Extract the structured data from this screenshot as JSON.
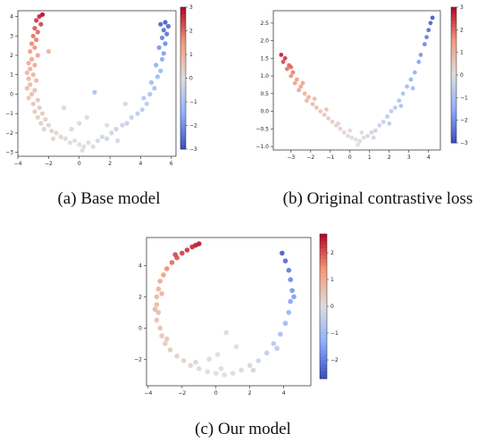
{
  "chart_data": [
    {
      "type": "scatter",
      "caption": "(a) Base model",
      "xlim": [
        -4,
        6.3
      ],
      "ylim": [
        -3.2,
        4.3
      ],
      "xticks": [
        -4,
        -2,
        0,
        2,
        4,
        6
      ],
      "yticks": [
        -3,
        -2,
        -1,
        0,
        1,
        2,
        3,
        4
      ],
      "colorbar": {
        "min": -3,
        "max": 3,
        "ticks": [
          3,
          2,
          1,
          0,
          -1,
          -2,
          -3
        ],
        "tick_labels": [
          "3",
          "2",
          "1",
          "0",
          "−1",
          "−2",
          "−3"
        ]
      },
      "points": [
        {
          "x": -2.4,
          "y": 4.1,
          "c": 3.0
        },
        {
          "x": -2.6,
          "y": 4.0,
          "c": 2.7
        },
        {
          "x": -2.8,
          "y": 3.8,
          "c": 2.5
        },
        {
          "x": -2.5,
          "y": 3.6,
          "c": 2.4
        },
        {
          "x": -2.9,
          "y": 3.4,
          "c": 2.2
        },
        {
          "x": -2.7,
          "y": 3.2,
          "c": 2.0
        },
        {
          "x": -3.0,
          "y": 3.0,
          "c": 1.9
        },
        {
          "x": -2.8,
          "y": 2.8,
          "c": 1.8
        },
        {
          "x": -3.1,
          "y": 2.6,
          "c": 1.7
        },
        {
          "x": -2.9,
          "y": 2.4,
          "c": 1.6
        },
        {
          "x": -3.2,
          "y": 2.2,
          "c": 1.5
        },
        {
          "x": -2.7,
          "y": 2.0,
          "c": 1.4
        },
        {
          "x": -3.1,
          "y": 1.8,
          "c": 1.3
        },
        {
          "x": -3.3,
          "y": 1.6,
          "c": 1.2
        },
        {
          "x": -2.9,
          "y": 1.5,
          "c": 1.2
        },
        {
          "x": -3.2,
          "y": 1.3,
          "c": 1.1
        },
        {
          "x": -3.4,
          "y": 1.1,
          "c": 1.0
        },
        {
          "x": -3.0,
          "y": 1.0,
          "c": 1.0
        },
        {
          "x": -3.3,
          "y": 0.8,
          "c": 0.9
        },
        {
          "x": -2.8,
          "y": 0.7,
          "c": 0.9
        },
        {
          "x": -3.2,
          "y": 0.5,
          "c": 0.8
        },
        {
          "x": -3.4,
          "y": 0.3,
          "c": 0.8
        },
        {
          "x": -2.9,
          "y": 0.2,
          "c": 0.7
        },
        {
          "x": -3.1,
          "y": 0.0,
          "c": 0.7
        },
        {
          "x": -3.3,
          "y": -0.2,
          "c": 0.6
        },
        {
          "x": -2.7,
          "y": -0.3,
          "c": 0.6
        },
        {
          "x": -3.0,
          "y": -0.5,
          "c": 0.6
        },
        {
          "x": -2.6,
          "y": -0.7,
          "c": 0.5
        },
        {
          "x": -2.9,
          "y": -0.9,
          "c": 0.5
        },
        {
          "x": -2.4,
          "y": -1.0,
          "c": 0.5
        },
        {
          "x": -2.7,
          "y": -1.2,
          "c": 0.4
        },
        {
          "x": -2.2,
          "y": -1.3,
          "c": 0.4
        },
        {
          "x": -2.5,
          "y": -1.5,
          "c": 0.4
        },
        {
          "x": -2.0,
          "y": -1.6,
          "c": 0.3
        },
        {
          "x": -2.3,
          "y": -1.8,
          "c": 0.3
        },
        {
          "x": -1.8,
          "y": -1.9,
          "c": 0.3
        },
        {
          "x": -1.5,
          "y": -2.0,
          "c": 0.2
        },
        {
          "x": -1.2,
          "y": -2.2,
          "c": 0.2
        },
        {
          "x": -1.7,
          "y": -2.3,
          "c": 0.2
        },
        {
          "x": -0.9,
          "y": -2.3,
          "c": 0.1
        },
        {
          "x": -0.6,
          "y": -2.5,
          "c": 0.1
        },
        {
          "x": -0.3,
          "y": -2.4,
          "c": 0.0
        },
        {
          "x": 0.0,
          "y": -2.6,
          "c": 0.0
        },
        {
          "x": 0.3,
          "y": -2.7,
          "c": 0.0
        },
        {
          "x": 0.6,
          "y": -2.5,
          "c": -0.1
        },
        {
          "x": 0.2,
          "y": -2.9,
          "c": 0.0
        },
        {
          "x": 0.9,
          "y": -2.7,
          "c": -0.1
        },
        {
          "x": 1.2,
          "y": -2.4,
          "c": -0.2
        },
        {
          "x": 1.5,
          "y": -2.2,
          "c": -0.2
        },
        {
          "x": 1.8,
          "y": -2.3,
          "c": -0.3
        },
        {
          "x": 2.1,
          "y": -2.0,
          "c": -0.3
        },
        {
          "x": 2.4,
          "y": -1.8,
          "c": -0.4
        },
        {
          "x": 2.8,
          "y": -1.6,
          "c": -0.4
        },
        {
          "x": 3.1,
          "y": -1.5,
          "c": -0.5
        },
        {
          "x": 3.4,
          "y": -1.2,
          "c": -0.5
        },
        {
          "x": 3.8,
          "y": -1.0,
          "c": -0.6
        },
        {
          "x": 4.1,
          "y": -0.8,
          "c": -0.7
        },
        {
          "x": 4.4,
          "y": -0.5,
          "c": -0.7
        },
        {
          "x": 4.2,
          "y": -0.2,
          "c": -0.8
        },
        {
          "x": 4.6,
          "y": 0.0,
          "c": -0.9
        },
        {
          "x": 4.9,
          "y": 0.3,
          "c": -1.0
        },
        {
          "x": 4.7,
          "y": 0.6,
          "c": -1.1
        },
        {
          "x": 5.1,
          "y": 0.9,
          "c": -1.2
        },
        {
          "x": 5.3,
          "y": 1.2,
          "c": -1.3
        },
        {
          "x": 5.0,
          "y": 1.5,
          "c": -1.5
        },
        {
          "x": 5.4,
          "y": 1.8,
          "c": -1.6
        },
        {
          "x": 5.5,
          "y": 2.1,
          "c": -1.8
        },
        {
          "x": 5.2,
          "y": 2.4,
          "c": -1.9
        },
        {
          "x": 5.6,
          "y": 2.6,
          "c": -2.1
        },
        {
          "x": 5.4,
          "y": 2.9,
          "c": -2.2
        },
        {
          "x": 5.7,
          "y": 3.1,
          "c": -2.4
        },
        {
          "x": 5.5,
          "y": 3.3,
          "c": -2.5
        },
        {
          "x": 5.8,
          "y": 3.5,
          "c": -2.6
        },
        {
          "x": 5.6,
          "y": 3.7,
          "c": -2.8
        },
        {
          "x": 5.3,
          "y": 3.6,
          "c": -2.7
        },
        {
          "x": -1.0,
          "y": -0.7,
          "c": 0.3
        },
        {
          "x": 0.5,
          "y": -1.2,
          "c": 0.1
        },
        {
          "x": 1.0,
          "y": 0.1,
          "c": -1.0
        },
        {
          "x": -2.0,
          "y": 2.2,
          "c": 1.0
        },
        {
          "x": 1.8,
          "y": -1.6,
          "c": 0.0
        },
        {
          "x": 3.0,
          "y": -0.5,
          "c": -0.3
        },
        {
          "x": -0.5,
          "y": -1.8,
          "c": 0.2
        },
        {
          "x": 2.5,
          "y": -2.4,
          "c": -0.2
        },
        {
          "x": 0.0,
          "y": -1.5,
          "c": 0.2
        }
      ]
    },
    {
      "type": "scatter",
      "caption": "(b) Original contrastive loss",
      "xlim": [
        -3.9,
        4.6
      ],
      "ylim": [
        -1.1,
        2.85
      ],
      "xticks": [
        -3,
        -2,
        -1,
        0,
        1,
        2,
        3,
        4
      ],
      "yticks": [
        -1.0,
        -0.5,
        0.0,
        0.5,
        1.0,
        1.5,
        2.0,
        2.5
      ],
      "colorbar": {
        "min": -3,
        "max": 3,
        "ticks": [
          3,
          2,
          1,
          0,
          -1,
          -2,
          -3
        ],
        "tick_labels": [
          "3",
          "2",
          "1",
          "0",
          "−1",
          "−2",
          "−3"
        ]
      },
      "points": [
        {
          "x": -3.5,
          "y": 1.6,
          "c": 2.8
        },
        {
          "x": -3.3,
          "y": 1.5,
          "c": 2.5
        },
        {
          "x": -3.4,
          "y": 1.4,
          "c": 2.3
        },
        {
          "x": -3.1,
          "y": 1.3,
          "c": 2.1
        },
        {
          "x": -3.2,
          "y": 1.2,
          "c": 1.9
        },
        {
          "x": -2.9,
          "y": 1.1,
          "c": 1.8
        },
        {
          "x": -3.0,
          "y": 1.0,
          "c": 1.6
        },
        {
          "x": -2.7,
          "y": 0.9,
          "c": 1.5
        },
        {
          "x": -2.8,
          "y": 0.8,
          "c": 1.4
        },
        {
          "x": -2.5,
          "y": 0.7,
          "c": 1.3
        },
        {
          "x": -2.6,
          "y": 0.6,
          "c": 1.2
        },
        {
          "x": -2.3,
          "y": 0.5,
          "c": 1.1
        },
        {
          "x": -2.1,
          "y": 0.4,
          "c": 1.0
        },
        {
          "x": -2.2,
          "y": 0.3,
          "c": 0.9
        },
        {
          "x": -1.9,
          "y": 0.2,
          "c": 0.8
        },
        {
          "x": -1.7,
          "y": 0.1,
          "c": 0.7
        },
        {
          "x": -1.5,
          "y": 0.0,
          "c": 0.6
        },
        {
          "x": -1.3,
          "y": -0.1,
          "c": 0.5
        },
        {
          "x": -1.1,
          "y": -0.2,
          "c": 0.5
        },
        {
          "x": -0.9,
          "y": -0.3,
          "c": 0.4
        },
        {
          "x": -0.7,
          "y": -0.4,
          "c": 0.3
        },
        {
          "x": -0.5,
          "y": -0.5,
          "c": 0.3
        },
        {
          "x": -0.3,
          "y": -0.6,
          "c": 0.2
        },
        {
          "x": -0.1,
          "y": -0.7,
          "c": 0.1
        },
        {
          "x": 0.1,
          "y": -0.75,
          "c": 0.0
        },
        {
          "x": 0.3,
          "y": -0.8,
          "c": 0.0
        },
        {
          "x": 0.5,
          "y": -0.85,
          "c": -0.1
        },
        {
          "x": 0.7,
          "y": -0.75,
          "c": -0.1
        },
        {
          "x": 0.9,
          "y": -0.7,
          "c": -0.2
        },
        {
          "x": 1.1,
          "y": -0.6,
          "c": -0.3
        },
        {
          "x": 1.3,
          "y": -0.55,
          "c": -0.3
        },
        {
          "x": 1.5,
          "y": -0.4,
          "c": -0.4
        },
        {
          "x": 1.7,
          "y": -0.3,
          "c": -0.5
        },
        {
          "x": 1.9,
          "y": -0.15,
          "c": -0.6
        },
        {
          "x": 2.1,
          "y": 0.0,
          "c": -0.7
        },
        {
          "x": 2.3,
          "y": 0.1,
          "c": -0.8
        },
        {
          "x": 2.5,
          "y": 0.3,
          "c": -0.9
        },
        {
          "x": 2.7,
          "y": 0.5,
          "c": -1.0
        },
        {
          "x": 2.9,
          "y": 0.7,
          "c": -1.2
        },
        {
          "x": 3.1,
          "y": 0.9,
          "c": -1.4
        },
        {
          "x": 3.3,
          "y": 1.1,
          "c": -1.5
        },
        {
          "x": 3.5,
          "y": 1.4,
          "c": -1.7
        },
        {
          "x": 3.6,
          "y": 1.6,
          "c": -1.9
        },
        {
          "x": 3.8,
          "y": 1.9,
          "c": -2.1
        },
        {
          "x": 3.9,
          "y": 2.1,
          "c": -2.3
        },
        {
          "x": 4.0,
          "y": 2.3,
          "c": -2.5
        },
        {
          "x": 4.1,
          "y": 2.5,
          "c": -2.7
        },
        {
          "x": 4.2,
          "y": 2.65,
          "c": -2.9
        },
        {
          "x": -3.0,
          "y": 1.25,
          "c": 2.0
        },
        {
          "x": -2.4,
          "y": 0.8,
          "c": 1.3
        },
        {
          "x": -1.8,
          "y": 0.35,
          "c": 0.8
        },
        {
          "x": -1.2,
          "y": 0.05,
          "c": 0.6
        },
        {
          "x": -0.6,
          "y": -0.35,
          "c": 0.3
        },
        {
          "x": 0.0,
          "y": -0.55,
          "c": 0.1
        },
        {
          "x": 0.6,
          "y": -0.6,
          "c": -0.1
        },
        {
          "x": 1.2,
          "y": -0.75,
          "c": -0.2
        },
        {
          "x": 2.0,
          "y": -0.35,
          "c": -0.6
        },
        {
          "x": 2.6,
          "y": 0.15,
          "c": -0.9
        },
        {
          "x": 3.2,
          "y": 0.65,
          "c": -1.3
        },
        {
          "x": 0.4,
          "y": -0.95,
          "c": 0.0
        }
      ]
    },
    {
      "type": "scatter",
      "caption": "(c) Our model",
      "xlim": [
        -4.1,
        5.6
      ],
      "ylim": [
        -3.7,
        5.8
      ],
      "xticks": [
        -4,
        -2,
        0,
        2,
        4
      ],
      "yticks": [
        -2,
        0,
        2,
        4
      ],
      "colorbar": {
        "min": -2.7,
        "max": 2.7,
        "ticks": [
          2,
          1,
          0,
          -1,
          -2
        ],
        "tick_labels": [
          "2",
          "1",
          "0",
          "−1",
          "−2"
        ]
      },
      "points": [
        {
          "x": -1.2,
          "y": 5.3,
          "c": 2.5
        },
        {
          "x": -1.4,
          "y": 5.2,
          "c": 2.4
        },
        {
          "x": -1.7,
          "y": 5.0,
          "c": 2.3
        },
        {
          "x": -2.0,
          "y": 4.8,
          "c": 2.2
        },
        {
          "x": -2.3,
          "y": 4.5,
          "c": 2.0
        },
        {
          "x": -2.6,
          "y": 4.2,
          "c": 1.8
        },
        {
          "x": -2.9,
          "y": 3.8,
          "c": 1.5
        },
        {
          "x": -3.1,
          "y": 3.4,
          "c": 1.3
        },
        {
          "x": -3.3,
          "y": 3.0,
          "c": 1.1
        },
        {
          "x": -3.4,
          "y": 2.5,
          "c": 0.9
        },
        {
          "x": -3.5,
          "y": 2.0,
          "c": 0.8
        },
        {
          "x": -3.5,
          "y": 1.5,
          "c": 0.7
        },
        {
          "x": -3.4,
          "y": 1.0,
          "c": 0.7
        },
        {
          "x": -3.5,
          "y": 0.5,
          "c": 0.6
        },
        {
          "x": -3.3,
          "y": 0.0,
          "c": 0.6
        },
        {
          "x": -3.2,
          "y": -0.5,
          "c": 0.5
        },
        {
          "x": -3.0,
          "y": -1.0,
          "c": 0.4
        },
        {
          "x": -2.7,
          "y": -1.4,
          "c": 0.4
        },
        {
          "x": -2.3,
          "y": -1.8,
          "c": 0.3
        },
        {
          "x": -1.9,
          "y": -2.1,
          "c": 0.2
        },
        {
          "x": -1.5,
          "y": -2.4,
          "c": 0.2
        },
        {
          "x": -1.0,
          "y": -2.6,
          "c": 0.1
        },
        {
          "x": -0.5,
          "y": -2.8,
          "c": 0.0
        },
        {
          "x": 0.0,
          "y": -2.9,
          "c": 0.0
        },
        {
          "x": 0.5,
          "y": -3.0,
          "c": 0.0
        },
        {
          "x": 1.0,
          "y": -2.9,
          "c": -0.1
        },
        {
          "x": 1.5,
          "y": -2.7,
          "c": -0.1
        },
        {
          "x": 2.0,
          "y": -2.4,
          "c": -0.2
        },
        {
          "x": 2.5,
          "y": -2.1,
          "c": -0.3
        },
        {
          "x": 3.0,
          "y": -1.6,
          "c": -0.5
        },
        {
          "x": 3.4,
          "y": -1.0,
          "c": -0.7
        },
        {
          "x": 3.8,
          "y": -0.4,
          "c": -0.9
        },
        {
          "x": 4.1,
          "y": 0.3,
          "c": -1.1
        },
        {
          "x": 4.3,
          "y": 1.0,
          "c": -1.3
        },
        {
          "x": 4.4,
          "y": 1.7,
          "c": -1.5
        },
        {
          "x": 4.5,
          "y": 2.4,
          "c": -1.7
        },
        {
          "x": 4.4,
          "y": 3.1,
          "c": -1.9
        },
        {
          "x": 4.3,
          "y": 3.7,
          "c": -2.1
        },
        {
          "x": 4.1,
          "y": 4.3,
          "c": -2.3
        },
        {
          "x": 3.9,
          "y": 4.8,
          "c": -2.5
        },
        {
          "x": -1.0,
          "y": 5.4,
          "c": 2.6
        },
        {
          "x": -2.4,
          "y": 4.7,
          "c": 2.1
        },
        {
          "x": -3.2,
          "y": 2.2,
          "c": 0.9
        },
        {
          "x": -3.6,
          "y": 1.2,
          "c": 0.8
        },
        {
          "x": -2.9,
          "y": -0.7,
          "c": 0.5
        },
        {
          "x": -1.2,
          "y": -2.2,
          "c": 0.2
        },
        {
          "x": 0.3,
          "y": -2.6,
          "c": 0.0
        },
        {
          "x": 2.2,
          "y": -2.7,
          "c": -0.2
        },
        {
          "x": 3.6,
          "y": -1.3,
          "c": -0.6
        },
        {
          "x": 4.6,
          "y": 2.0,
          "c": -1.6
        },
        {
          "x": 0.6,
          "y": -0.3,
          "c": 0.0
        },
        {
          "x": 1.2,
          "y": -1.2,
          "c": 0.0
        },
        {
          "x": 0.1,
          "y": -1.7,
          "c": 0.0
        },
        {
          "x": -0.4,
          "y": -2.0,
          "c": 0.1
        }
      ]
    }
  ]
}
